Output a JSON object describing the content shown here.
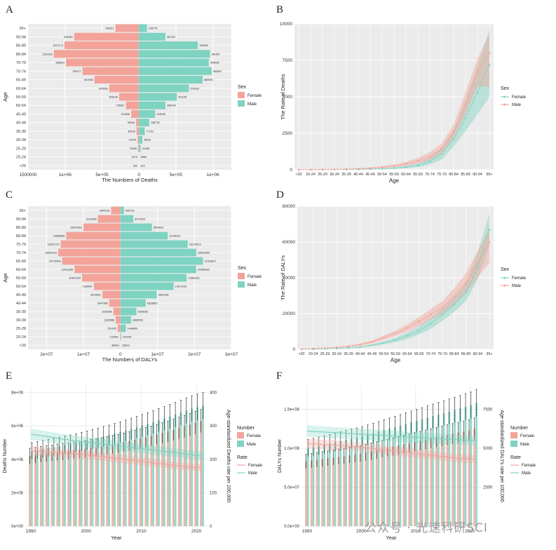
{
  "panels": {
    "A": "A",
    "B": "B",
    "C": "C",
    "D": "D",
    "E": "E",
    "F": "F"
  },
  "watermark": "公众号 · 光速科研SCI",
  "chart_data": [
    {
      "id": "A",
      "type": "bar",
      "orientation": "population-pyramid",
      "categories": [
        "<20",
        "20-24",
        "25-29",
        "30-34",
        "35-39",
        "40-44",
        "45-49",
        "50-54",
        "55-59",
        "60-64",
        "65-69",
        "70-74",
        "75-79",
        "80-84",
        "85-89",
        "90-94",
        "95+"
      ],
      "series": [
        {
          "name": "Female",
          "color": "#f4a39a",
          "values": [
            320,
            1670,
            10626,
            19476,
            32426,
            38164,
            104396,
            175867,
            268136,
            400933,
            601966,
            763077,
            986523,
            1151303,
            1007174,
            876582,
            318611
          ]
        },
        {
          "name": "Male",
          "color": "#7ed3c1",
          "values": [
            313,
            2686,
            21836,
            46061,
            77751,
            138778,
            218095,
            358478,
            511126,
            675316,
            860593,
            983567,
            945556,
            961597,
            796563,
            357167,
            108776
          ]
        }
      ],
      "value_labels": {
        "Female": [
          "320",
          "1670",
          "10626",
          "19476",
          "32426",
          "38164",
          "104396",
          "175867",
          "268136",
          "400933",
          "601966",
          "763077",
          "986523",
          "1151303",
          "1007174",
          "876582",
          "318611"
        ],
        "Male": [
          "313",
          "2686",
          "21836",
          "46061",
          "77751",
          "138778",
          "218095",
          "358478",
          "511126",
          "675316",
          "860593",
          "983567",
          "945556",
          "961597",
          "796563",
          "357167",
          "108776"
        ]
      },
      "xlabel": "The Numbers of Deaths",
      "ylabel": "Age",
      "xlim": [
        -1500000,
        1250000
      ],
      "xticks": [
        -1500000,
        -1000000,
        -500000,
        0,
        500000,
        1000000
      ],
      "xtick_labels": [
        "1500000",
        "1e+06",
        "5e+05",
        "0",
        "5e+05",
        "1e+06"
      ],
      "legend_title": "Sex",
      "legend": [
        "Female",
        "Male"
      ]
    },
    {
      "id": "B",
      "type": "line",
      "categories": [
        "<20",
        "20-24",
        "25-29",
        "30-34",
        "35-39",
        "40-44",
        "45-49",
        "50-54",
        "55-59",
        "60-64",
        "65-69",
        "70-74",
        "75-79",
        "80-84",
        "85-89",
        "90-94",
        "95+"
      ],
      "series": [
        {
          "name": "Female",
          "color": "#7ed3c1",
          "values": [
            2,
            5,
            10,
            15,
            20,
            30,
            45,
            70,
            110,
            180,
            290,
            560,
            1080,
            2100,
            3550,
            5300,
            7200
          ],
          "lower": [
            1,
            3,
            6,
            10,
            14,
            20,
            30,
            45,
            70,
            110,
            180,
            360,
            700,
            1600,
            2650,
            3800,
            5000
          ],
          "upper": [
            3,
            8,
            15,
            22,
            30,
            45,
            70,
            110,
            170,
            280,
            450,
            820,
            1500,
            2700,
            4700,
            7100,
            9600
          ]
        },
        {
          "name": "Male",
          "color": "#f4a39a",
          "values": [
            3,
            10,
            20,
            30,
            45,
            70,
            110,
            180,
            260,
            400,
            600,
            900,
            1450,
            2600,
            4500,
            6700,
            8000
          ],
          "lower": [
            2,
            6,
            14,
            20,
            30,
            48,
            75,
            125,
            180,
            280,
            430,
            650,
            1150,
            2150,
            3800,
            5700,
            5700
          ],
          "upper": [
            5,
            15,
            28,
            42,
            62,
            95,
            150,
            245,
            350,
            540,
            820,
            1200,
            1800,
            3100,
            5300,
            7600,
            9300
          ]
        }
      ],
      "xlabel": "Age",
      "ylabel": "The Rate of Deaths",
      "ylim": [
        0,
        10000
      ],
      "yticks": [
        0,
        2500,
        5000,
        7500,
        10000
      ],
      "legend_title": "Sex",
      "legend": [
        "Female",
        "Male"
      ]
    },
    {
      "id": "C",
      "type": "bar",
      "orientation": "population-pyramid",
      "categories": [
        "<20",
        "20-24",
        "25-29",
        "30-34",
        "35-39",
        "40-44",
        "45-49",
        "50-54",
        "55-59",
        "60-64",
        "65-69",
        "70-74",
        "75-79",
        "80-84",
        "85-89",
        "90-94",
        "95+"
      ],
      "series": [
        {
          "name": "Female",
          "color": "#f4a39a",
          "values": [
            36083,
            125261,
            751405,
            1283568,
            1929386,
            3047986,
            4878991,
            7186647,
            10397034,
            12431189,
            15779409,
            16840193,
            16161722,
            14658586,
            10024691,
            6112968,
            2544115
          ],
          "label_values": [
            "36083",
            "125261",
            "751405",
            "1283568",
            "1929386",
            "3047986",
            "4878991",
            "7186647",
            "10397034",
            "12431189",
            "15779409",
            "16840193",
            "16161722",
            "14658586",
            "10024691",
            "6112968",
            "2544115"
          ]
        },
        {
          "name": "Male",
          "color": "#7ed3c1",
          "values": [
            23629,
            161005,
            1448609,
            2866556,
            4306263,
            6816863,
            9841408,
            14371103,
            17860321,
            20469935,
            22316817,
            20503965,
            18179613,
            12764211,
            8509923,
            3473169,
            940715
          ],
          "label_values": [
            "23629",
            "161005",
            "1448609",
            "2866556",
            "4306263",
            "6816863",
            "9841408",
            "14371103",
            "17860321",
            "20469935",
            "22316817",
            "20503965",
            "18179613",
            "12764211",
            "8509923",
            "3473169",
            "940715"
          ]
        }
      ],
      "xlabel": "The Numbers of DALYs",
      "ylabel": "Age",
      "xlim": [
        -25000000,
        30000000
      ],
      "xticks": [
        -20000000,
        -10000000,
        0,
        10000000,
        20000000,
        30000000
      ],
      "xtick_labels": [
        "2e+07",
        "1e+07",
        "0",
        "1e+07",
        "2e+07",
        "3e+07"
      ],
      "legend_title": "Sex",
      "legend": [
        "Female",
        "Male"
      ]
    },
    {
      "id": "D",
      "type": "line",
      "categories": [
        "<20",
        "20-24",
        "25-29",
        "30-34",
        "35-39",
        "40-44",
        "45-49",
        "50-54",
        "55-59",
        "60-64",
        "65-69",
        "70-74",
        "75-79",
        "80-84",
        "85-89",
        "90-94",
        "95+"
      ],
      "series": [
        {
          "name": "Female",
          "color": "#7ed3c1",
          "values": [
            50,
            150,
            300,
            500,
            800,
            1300,
            2300,
            3600,
            5200,
            7600,
            10500,
            14500,
            19500,
            25000,
            32000,
            46000,
            67000
          ],
          "lower": [
            30,
            100,
            200,
            350,
            600,
            1000,
            1800,
            2800,
            4000,
            5800,
            8300,
            11500,
            16000,
            21000,
            27000,
            39000,
            58000
          ],
          "upper": [
            70,
            200,
            400,
            650,
            1000,
            1700,
            2900,
            4500,
            6500,
            9400,
            12800,
            17500,
            23000,
            29000,
            37000,
            54000,
            76000
          ]
        },
        {
          "name": "Male",
          "color": "#f4a39a",
          "values": [
            150,
            400,
            700,
            1100,
            1700,
            2700,
            4200,
            6500,
            9000,
            12000,
            15500,
            19500,
            23500,
            29500,
            37000,
            48000,
            60000
          ],
          "lower": [
            100,
            300,
            550,
            850,
            1300,
            2100,
            3400,
            5300,
            7500,
            10000,
            13000,
            16500,
            20000,
            25000,
            31500,
            40000,
            48500
          ],
          "upper": [
            200,
            500,
            850,
            1350,
            2100,
            3300,
            5000,
            7700,
            10500,
            14000,
            18000,
            22500,
            27000,
            34000,
            42500,
            55000,
            67500
          ]
        }
      ],
      "xlabel": "Age",
      "ylabel": "The Rate of DALYs",
      "ylim": [
        0,
        80000
      ],
      "yticks": [
        0,
        20000,
        40000,
        60000,
        80000
      ],
      "legend_title": "Sex",
      "legend": [
        "Female",
        "Male"
      ]
    },
    {
      "id": "E",
      "type": "bar",
      "x": [
        1990,
        1991,
        1992,
        1993,
        1994,
        1995,
        1996,
        1997,
        1998,
        1999,
        2000,
        2001,
        2002,
        2003,
        2004,
        2005,
        2006,
        2007,
        2008,
        2009,
        2010,
        2011,
        2012,
        2013,
        2014,
        2015,
        2016,
        2017,
        2018,
        2019,
        2020,
        2021
      ],
      "bar_series": [
        {
          "name": "Female",
          "color": "#f4a39a",
          "values": [
            4200000,
            4250000,
            4300000,
            4340000,
            4380000,
            4420000,
            4460000,
            4500000,
            4540000,
            4580000,
            4620000,
            4670000,
            4720000,
            4770000,
            4830000,
            4890000,
            4950000,
            5020000,
            5090000,
            5160000,
            5240000,
            5320000,
            5400000,
            5490000,
            5580000,
            5670000,
            5770000,
            5870000,
            5970000,
            6080000,
            6190000,
            6300000
          ]
        },
        {
          "name": "Male",
          "color": "#7ed3c1",
          "values": [
            4500000,
            4560000,
            4620000,
            4680000,
            4740000,
            4800000,
            4860000,
            4920000,
            4990000,
            5060000,
            5130000,
            5210000,
            5290000,
            5370000,
            5450000,
            5540000,
            5630000,
            5720000,
            5820000,
            5920000,
            6020000,
            6120000,
            6230000,
            6340000,
            6450000,
            6560000,
            6680000,
            6800000,
            6920000,
            7040000,
            7120000,
            7200000
          ]
        }
      ],
      "rate_series": [
        {
          "name": "Female",
          "color": "#f4a39a",
          "values": [
            225,
            224,
            223,
            222,
            221,
            220,
            219,
            218,
            216,
            215,
            214,
            212,
            210,
            208,
            206,
            204,
            202,
            200,
            198,
            196,
            194,
            192,
            190,
            188,
            186,
            184,
            182,
            180,
            178,
            177,
            176,
            175
          ]
        },
        {
          "name": "Male",
          "color": "#7ed3c1",
          "values": [
            275,
            273,
            271,
            268,
            265,
            262,
            260,
            258,
            256,
            254,
            252,
            250,
            248,
            246,
            244,
            242,
            240,
            238,
            236,
            234,
            232,
            230,
            228,
            226,
            224,
            222,
            220,
            218,
            216,
            214,
            212,
            210
          ]
        }
      ],
      "xlabel": "Year",
      "ylabel": "Deaths Number",
      "ylabel_right": "Age-standardized Deaths rate per 100,000",
      "ylim": [
        0,
        8400000
      ],
      "yticks": [
        0,
        2000000,
        4000000,
        6000000,
        8000000
      ],
      "ytick_labels": [
        "0e+00",
        "2e+06",
        "4e+06",
        "6e+06",
        "8e+06"
      ],
      "ylim_right": [
        0,
        420
      ],
      "yticks_right": [
        0,
        100,
        200,
        300,
        400
      ],
      "xticks": [
        1990,
        2000,
        2010,
        2020
      ],
      "legend_title_number": "Number",
      "legend_title_rate": "Rate",
      "legend": [
        "Female",
        "Male"
      ]
    },
    {
      "id": "F",
      "type": "bar",
      "x": [
        1990,
        1991,
        1992,
        1993,
        1994,
        1995,
        1996,
        1997,
        1998,
        1999,
        2000,
        2001,
        2002,
        2003,
        2004,
        2005,
        2006,
        2007,
        2008,
        2009,
        2010,
        2011,
        2012,
        2013,
        2014,
        2015,
        2016,
        2017,
        2018,
        2019,
        2020,
        2021
      ],
      "bar_series": [
        {
          "name": "Female",
          "color": "#f4a39a",
          "values": [
            83000000,
            84000000,
            85000000,
            86000000,
            87000000,
            88000000,
            89000000,
            90000000,
            91000000,
            92000000,
            93000000,
            94500000,
            96000000,
            97500000,
            99000000,
            100500000,
            102000000,
            103500000,
            105000000,
            106500000,
            108000000,
            109500000,
            111000000,
            112500000,
            114000000,
            115500000,
            117000000,
            118500000,
            120000000,
            121500000,
            123000000,
            125000000
          ]
        },
        {
          "name": "Male",
          "color": "#7ed3c1",
          "values": [
            100000000,
            101500000,
            103000000,
            104500000,
            106000000,
            107500000,
            109000000,
            110500000,
            112000000,
            113500000,
            115000000,
            117000000,
            119000000,
            121000000,
            123000000,
            125000000,
            127000000,
            129000000,
            131000000,
            133000000,
            135000000,
            137000000,
            139000000,
            141000000,
            143000000,
            145000000,
            147000000,
            149000000,
            151000000,
            153000000,
            155000000,
            158000000
          ]
        }
      ],
      "rate_series": [
        {
          "name": "Female",
          "color": "#f4a39a",
          "values": [
            5300,
            5280,
            5260,
            5240,
            5220,
            5200,
            5180,
            5150,
            5120,
            5090,
            5060,
            5020,
            4980,
            4940,
            4900,
            4860,
            4820,
            4780,
            4740,
            4700,
            4660,
            4620,
            4580,
            4540,
            4500,
            4460,
            4420,
            4380,
            4350,
            4330,
            4310,
            4300
          ]
        },
        {
          "name": "Male",
          "color": "#7ed3c1",
          "values": [
            6100,
            6080,
            6060,
            6040,
            6020,
            6000,
            5980,
            5960,
            5940,
            5920,
            5900,
            5880,
            5860,
            5840,
            5820,
            5800,
            5780,
            5760,
            5740,
            5720,
            5700,
            5680,
            5660,
            5640,
            5620,
            5600,
            5580,
            5560,
            5540,
            5520,
            5500,
            5480
          ]
        }
      ],
      "xlabel": "Year",
      "ylabel": "DALYs Number",
      "ylabel_right": "Age-standardized DALYs rate per 100,000",
      "ylim": [
        0,
        180000000
      ],
      "yticks": [
        0,
        50000000,
        100000000,
        150000000
      ],
      "ytick_labels": [
        "0.0e+00",
        "5.0e+07",
        "1.0e+08",
        "1.5e+08"
      ],
      "ylim_right": [
        0,
        9000
      ],
      "yticks_right": [
        2500,
        5000,
        7500
      ],
      "xticks": [
        1990,
        2000,
        2010,
        2020
      ],
      "legend_title_number": "Number",
      "legend_title_rate": "Rate",
      "legend": [
        "Female",
        "Male"
      ]
    }
  ]
}
